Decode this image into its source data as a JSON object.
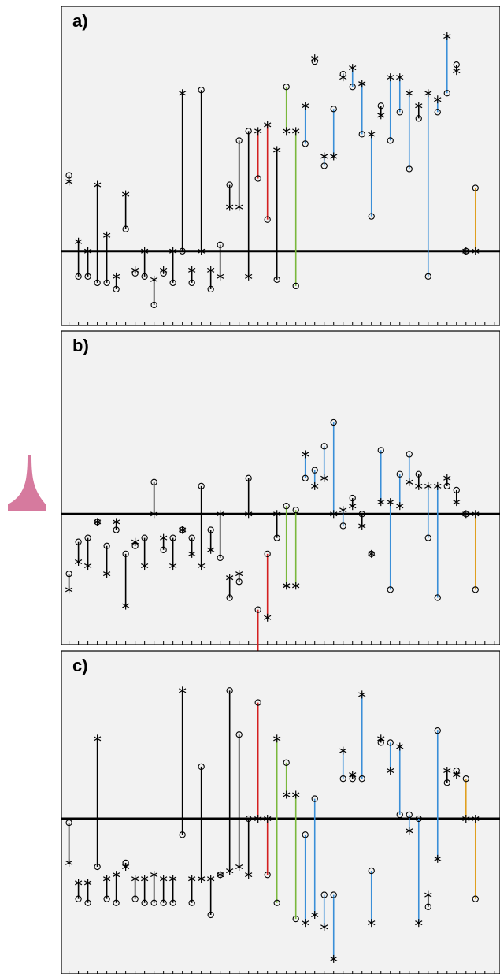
{
  "colors": {
    "black": "#000000",
    "red": "#d42020",
    "green": "#7ab83c",
    "blue": "#3a8fd8",
    "orange": "#e0a020",
    "panel_bg": "#f2f2f2",
    "sidebar_shape": "#d67a9e"
  },
  "chart_data": [
    {
      "type": "scatter",
      "panel_label": "a)",
      "grid": false,
      "ylim": [
        -1.0,
        3.5
      ],
      "pairs": [
        {
          "x": 1,
          "circle": 1.2,
          "star": 1.1,
          "color": "black"
        },
        {
          "x": 2,
          "circle": -0.4,
          "star": 0.15,
          "color": "black"
        },
        {
          "x": 3,
          "circle": -0.4,
          "star": 0.0,
          "color": "black"
        },
        {
          "x": 4,
          "circle": -0.5,
          "star": 1.05,
          "color": "black"
        },
        {
          "x": 5,
          "circle": -0.5,
          "star": 0.25,
          "color": "black"
        },
        {
          "x": 6,
          "circle": -0.6,
          "star": -0.4,
          "color": "black"
        },
        {
          "x": 7,
          "circle": 0.35,
          "star": 0.9,
          "color": "black"
        },
        {
          "x": 8,
          "circle": -0.35,
          "star": -0.3,
          "color": "black"
        },
        {
          "x": 9,
          "circle": -0.4,
          "star": 0.0,
          "color": "black"
        },
        {
          "x": 10,
          "circle": -0.85,
          "star": -0.45,
          "color": "black"
        },
        {
          "x": 11,
          "circle": -0.35,
          "star": -0.3,
          "color": "black"
        },
        {
          "x": 12,
          "circle": -0.5,
          "star": 0.0,
          "color": "black"
        },
        {
          "x": 13,
          "circle": 0.0,
          "star": 2.5,
          "color": "black"
        },
        {
          "x": 14,
          "circle": -0.5,
          "star": -0.3,
          "color": "black"
        },
        {
          "x": 15,
          "circle": 2.55,
          "star": 0.0,
          "color": "black"
        },
        {
          "x": 16,
          "circle": -0.6,
          "star": -0.3,
          "color": "black"
        },
        {
          "x": 17,
          "circle": 0.1,
          "star": -0.4,
          "color": "black"
        },
        {
          "x": 18,
          "circle": 1.05,
          "star": 0.7,
          "color": "black"
        },
        {
          "x": 19,
          "circle": 1.75,
          "star": 0.7,
          "color": "black"
        },
        {
          "x": 20,
          "circle": 1.9,
          "star": -0.4,
          "color": "black"
        },
        {
          "x": 21,
          "circle": 1.15,
          "star": 1.9,
          "color": "red"
        },
        {
          "x": 22,
          "circle": 0.5,
          "star": 2.0,
          "color": "red"
        },
        {
          "x": 23,
          "circle": -0.45,
          "star": 1.6,
          "color": "black"
        },
        {
          "x": 24,
          "circle": 2.6,
          "star": 1.9,
          "color": "green"
        },
        {
          "x": 25,
          "circle": -0.55,
          "star": 1.9,
          "color": "green"
        },
        {
          "x": 26,
          "circle": 1.7,
          "star": 2.3,
          "color": "blue"
        },
        {
          "x": 27,
          "circle": 3.0,
          "star": 3.05,
          "color": "black"
        },
        {
          "x": 28,
          "circle": 1.35,
          "star": 1.5,
          "color": "blue"
        },
        {
          "x": 29,
          "circle": 2.25,
          "star": 1.5,
          "color": "blue"
        },
        {
          "x": 30,
          "circle": 2.8,
          "star": 2.75,
          "color": "blue"
        },
        {
          "x": 31,
          "circle": 2.6,
          "star": 2.9,
          "color": "blue"
        },
        {
          "x": 32,
          "circle": 1.85,
          "star": 2.65,
          "color": "blue"
        },
        {
          "x": 33,
          "circle": 0.55,
          "star": 1.85,
          "color": "blue"
        },
        {
          "x": 34,
          "circle": 2.3,
          "star": 2.15,
          "color": "black"
        },
        {
          "x": 35,
          "circle": 1.75,
          "star": 2.75,
          "color": "blue"
        },
        {
          "x": 36,
          "circle": 2.2,
          "star": 2.75,
          "color": "blue"
        },
        {
          "x": 37,
          "circle": 1.3,
          "star": 2.5,
          "color": "blue"
        },
        {
          "x": 38,
          "circle": 2.1,
          "star": 2.3,
          "color": "black"
        },
        {
          "x": 39,
          "circle": -0.4,
          "star": 2.5,
          "color": "blue"
        },
        {
          "x": 40,
          "circle": 2.2,
          "star": 2.4,
          "color": "blue"
        },
        {
          "x": 41,
          "circle": 2.5,
          "star": 3.4,
          "color": "blue"
        },
        {
          "x": 42,
          "circle": 2.95,
          "star": 2.85,
          "color": "black"
        },
        {
          "x": 43,
          "circle": 0.0,
          "star": 0.0,
          "color": "orange"
        },
        {
          "x": 44,
          "circle": 1.0,
          "star": 0.0,
          "color": "orange"
        }
      ]
    },
    {
      "type": "scatter",
      "panel_label": "b)",
      "grid": false,
      "ylim": [
        -1.5,
        2.0
      ],
      "pairs": [
        {
          "x": 1,
          "circle": -0.75,
          "star": -0.95,
          "color": "black"
        },
        {
          "x": 2,
          "circle": -0.35,
          "star": -0.6,
          "color": "black"
        },
        {
          "x": 3,
          "circle": -0.3,
          "star": -0.65,
          "color": "black"
        },
        {
          "x": 4,
          "circle": -0.1,
          "star": -0.1,
          "color": "black"
        },
        {
          "x": 5,
          "circle": -0.4,
          "star": -0.75,
          "color": "black"
        },
        {
          "x": 6,
          "circle": -0.2,
          "star": -0.1,
          "color": "black"
        },
        {
          "x": 7,
          "circle": -0.5,
          "star": -1.15,
          "color": "black"
        },
        {
          "x": 8,
          "circle": -0.4,
          "star": -0.35,
          "color": "black"
        },
        {
          "x": 9,
          "circle": -0.3,
          "star": -0.65,
          "color": "black"
        },
        {
          "x": 10,
          "circle": 0.4,
          "star": 0.0,
          "color": "black"
        },
        {
          "x": 11,
          "circle": -0.45,
          "star": -0.3,
          "color": "black"
        },
        {
          "x": 12,
          "circle": -0.3,
          "star": -0.65,
          "color": "black"
        },
        {
          "x": 13,
          "circle": -0.2,
          "star": -0.2,
          "color": "black"
        },
        {
          "x": 14,
          "circle": -0.3,
          "star": -0.5,
          "color": "black"
        },
        {
          "x": 15,
          "circle": 0.35,
          "star": -0.65,
          "color": "black"
        },
        {
          "x": 16,
          "circle": -0.2,
          "star": -0.45,
          "color": "black"
        },
        {
          "x": 17,
          "circle": -0.55,
          "star": 0.0,
          "color": "black"
        },
        {
          "x": 18,
          "circle": -1.05,
          "star": -0.8,
          "color": "black"
        },
        {
          "x": 19,
          "circle": -0.85,
          "star": -0.75,
          "color": "black"
        },
        {
          "x": 20,
          "circle": 0.45,
          "star": 0.0,
          "color": "black"
        },
        {
          "x": 21,
          "circle": -1.2,
          "star": -1.85,
          "color": "red"
        },
        {
          "x": 22,
          "circle": -0.5,
          "star": -1.3,
          "color": "red"
        },
        {
          "x": 23,
          "circle": -0.3,
          "star": 0.0,
          "color": "black"
        },
        {
          "x": 24,
          "circle": 0.1,
          "star": -0.9,
          "color": "green"
        },
        {
          "x": 25,
          "circle": 0.05,
          "star": -0.9,
          "color": "green"
        },
        {
          "x": 26,
          "circle": 0.45,
          "star": 0.75,
          "color": "blue"
        },
        {
          "x": 27,
          "circle": 0.55,
          "star": 0.35,
          "color": "blue"
        },
        {
          "x": 28,
          "circle": 0.85,
          "star": 0.45,
          "color": "blue"
        },
        {
          "x": 29,
          "circle": 1.15,
          "star": 0.0,
          "color": "blue"
        },
        {
          "x": 30,
          "circle": -0.15,
          "star": 0.05,
          "color": "blue"
        },
        {
          "x": 31,
          "circle": 0.2,
          "star": 0.1,
          "color": "black"
        },
        {
          "x": 32,
          "circle": 0.0,
          "star": -0.15,
          "color": "black"
        },
        {
          "x": 33,
          "circle": -0.5,
          "star": -0.5,
          "color": "black"
        },
        {
          "x": 34,
          "circle": 0.8,
          "star": 0.15,
          "color": "blue"
        },
        {
          "x": 35,
          "circle": -0.95,
          "star": 0.15,
          "color": "blue"
        },
        {
          "x": 36,
          "circle": 0.5,
          "star": 0.1,
          "color": "blue"
        },
        {
          "x": 37,
          "circle": 0.75,
          "star": 0.4,
          "color": "blue"
        },
        {
          "x": 38,
          "circle": 0.5,
          "star": 0.35,
          "color": "black"
        },
        {
          "x": 39,
          "circle": -0.3,
          "star": 0.35,
          "color": "blue"
        },
        {
          "x": 40,
          "circle": -1.05,
          "star": 0.35,
          "color": "blue"
        },
        {
          "x": 41,
          "circle": 0.35,
          "star": 0.45,
          "color": "black"
        },
        {
          "x": 42,
          "circle": 0.3,
          "star": 0.15,
          "color": "black"
        },
        {
          "x": 43,
          "circle": -0.0,
          "star": -0.0,
          "color": "orange"
        },
        {
          "x": 44,
          "circle": -0.95,
          "star": 0.0,
          "color": "orange"
        }
      ]
    },
    {
      "type": "scatter",
      "panel_label": "c)",
      "grid": false,
      "ylim": [
        -1.8,
        1.8
      ],
      "pairs": [
        {
          "x": 1,
          "circle": -0.05,
          "star": -0.55,
          "color": "black"
        },
        {
          "x": 2,
          "circle": -1.0,
          "star": -0.8,
          "color": "black"
        },
        {
          "x": 3,
          "circle": -1.05,
          "star": -0.8,
          "color": "black"
        },
        {
          "x": 4,
          "circle": -0.6,
          "star": 1.0,
          "color": "black"
        },
        {
          "x": 5,
          "circle": -1.0,
          "star": -0.75,
          "color": "black"
        },
        {
          "x": 6,
          "circle": -1.05,
          "star": -0.7,
          "color": "black"
        },
        {
          "x": 7,
          "circle": -0.55,
          "star": -0.6,
          "color": "black"
        },
        {
          "x": 8,
          "circle": -1.0,
          "star": -0.75,
          "color": "black"
        },
        {
          "x": 9,
          "circle": -1.05,
          "star": -0.75,
          "color": "black"
        },
        {
          "x": 10,
          "circle": -1.05,
          "star": -0.7,
          "color": "black"
        },
        {
          "x": 11,
          "circle": -1.05,
          "star": -0.75,
          "color": "black"
        },
        {
          "x": 12,
          "circle": -1.05,
          "star": -0.75,
          "color": "black"
        },
        {
          "x": 13,
          "circle": -0.2,
          "star": 1.6,
          "color": "black"
        },
        {
          "x": 14,
          "circle": -1.05,
          "star": -0.75,
          "color": "black"
        },
        {
          "x": 15,
          "circle": 0.65,
          "star": -0.75,
          "color": "black"
        },
        {
          "x": 16,
          "circle": -1.2,
          "star": -0.75,
          "color": "black"
        },
        {
          "x": 17,
          "circle": -0.7,
          "star": -0.7,
          "color": "black"
        },
        {
          "x": 18,
          "circle": 1.6,
          "star": -0.65,
          "color": "black"
        },
        {
          "x": 19,
          "circle": 1.05,
          "star": -0.6,
          "color": "black"
        },
        {
          "x": 20,
          "circle": 0.0,
          "star": -0.7,
          "color": "black"
        },
        {
          "x": 21,
          "circle": 1.45,
          "star": 0.0,
          "color": "red"
        },
        {
          "x": 22,
          "circle": -0.7,
          "star": 0.0,
          "color": "red"
        },
        {
          "x": 23,
          "circle": -1.05,
          "star": 1.0,
          "color": "green"
        },
        {
          "x": 24,
          "circle": 0.7,
          "star": 0.3,
          "color": "green"
        },
        {
          "x": 25,
          "circle": -1.25,
          "star": 0.3,
          "color": "green"
        },
        {
          "x": 26,
          "circle": -0.2,
          "star": -1.3,
          "color": "blue"
        },
        {
          "x": 27,
          "circle": 0.25,
          "star": -1.2,
          "color": "blue"
        },
        {
          "x": 28,
          "circle": -0.95,
          "star": -1.35,
          "color": "blue"
        },
        {
          "x": 29,
          "circle": -0.95,
          "star": -1.75,
          "color": "blue"
        },
        {
          "x": 30,
          "circle": 0.5,
          "star": 0.85,
          "color": "blue"
        },
        {
          "x": 31,
          "circle": 0.5,
          "star": 0.55,
          "color": "black"
        },
        {
          "x": 32,
          "circle": 0.5,
          "star": 1.55,
          "color": "blue"
        },
        {
          "x": 33,
          "circle": -0.65,
          "star": -1.3,
          "color": "blue"
        },
        {
          "x": 34,
          "circle": 0.95,
          "star": 1.0,
          "color": "black"
        },
        {
          "x": 35,
          "circle": 0.95,
          "star": 0.6,
          "color": "blue"
        },
        {
          "x": 36,
          "circle": 0.05,
          "star": 0.9,
          "color": "blue"
        },
        {
          "x": 37,
          "circle": 0.05,
          "star": -0.15,
          "color": "blue"
        },
        {
          "x": 38,
          "circle": 0.0,
          "star": -1.3,
          "color": "blue"
        },
        {
          "x": 39,
          "circle": -1.1,
          "star": -0.95,
          "color": "black"
        },
        {
          "x": 40,
          "circle": 1.1,
          "star": -0.5,
          "color": "blue"
        },
        {
          "x": 41,
          "circle": 0.45,
          "star": 0.6,
          "color": "black"
        },
        {
          "x": 42,
          "circle": 0.6,
          "star": 0.55,
          "color": "black"
        },
        {
          "x": 43,
          "circle": 0.5,
          "star": 0.0,
          "color": "orange"
        },
        {
          "x": 44,
          "circle": -1.0,
          "star": 0.0,
          "color": "orange"
        }
      ]
    }
  ]
}
